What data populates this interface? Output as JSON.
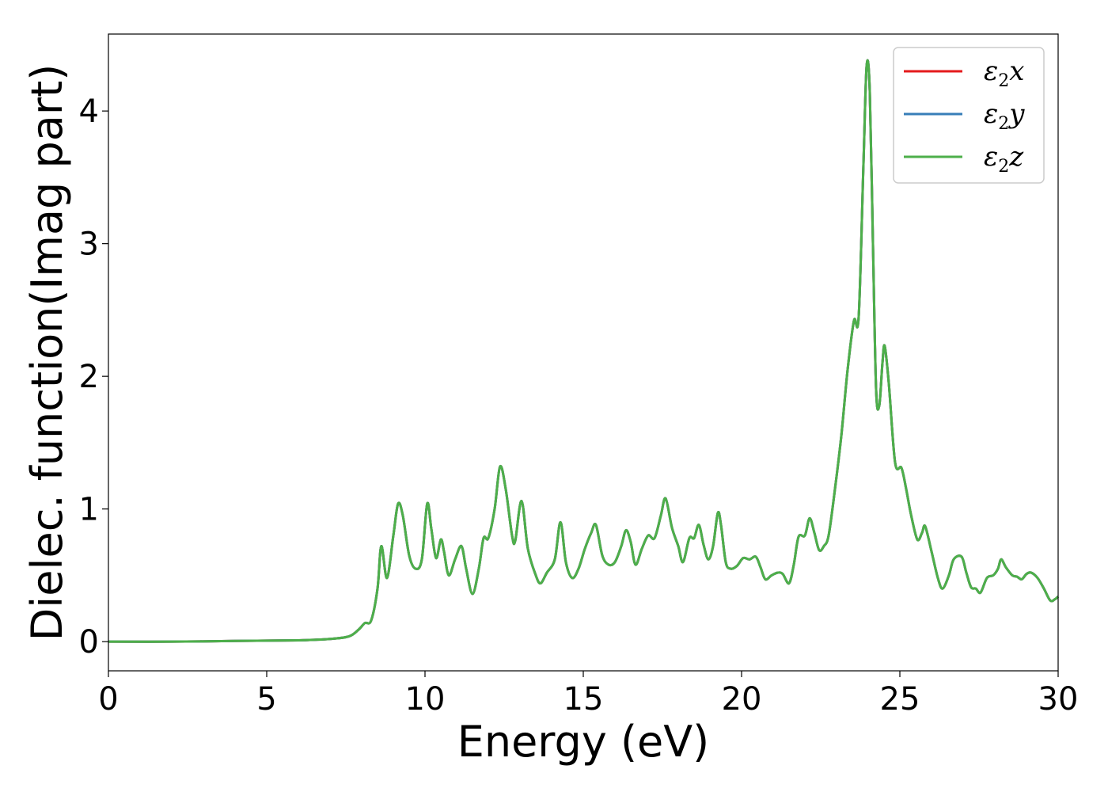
{
  "chart_data": {
    "type": "line",
    "title": "",
    "xlabel": "Energy (eV)",
    "ylabel": "Dielec. function(Imag part)",
    "xlim": [
      0,
      30
    ],
    "ylim": [
      -0.22,
      4.58
    ],
    "xticks": [
      0,
      5,
      10,
      15,
      20,
      25,
      30
    ],
    "yticks": [
      0,
      1,
      2,
      3,
      4
    ],
    "grid": false,
    "legend_position": "top-right",
    "legend": [
      {
        "symbol": "ε",
        "sub": "2",
        "axis": "x",
        "color": "#e41a1c"
      },
      {
        "symbol": "ε",
        "sub": "2",
        "axis": "y",
        "color": "#377eb8"
      },
      {
        "symbol": "ε",
        "sub": "2",
        "axis": "z",
        "color": "#4daf4a"
      }
    ],
    "series_points": [
      [
        0,
        0.0
      ],
      [
        2,
        0.0
      ],
      [
        4,
        0.005
      ],
      [
        6,
        0.01
      ],
      [
        7,
        0.02
      ],
      [
        7.6,
        0.04
      ],
      [
        7.9,
        0.09
      ],
      [
        8.1,
        0.14
      ],
      [
        8.3,
        0.16
      ],
      [
        8.5,
        0.4
      ],
      [
        8.62,
        0.72
      ],
      [
        8.8,
        0.48
      ],
      [
        9.0,
        0.8
      ],
      [
        9.15,
        1.04
      ],
      [
        9.3,
        0.95
      ],
      [
        9.5,
        0.65
      ],
      [
        9.7,
        0.55
      ],
      [
        9.9,
        0.62
      ],
      [
        10.07,
        1.04
      ],
      [
        10.2,
        0.85
      ],
      [
        10.35,
        0.63
      ],
      [
        10.5,
        0.77
      ],
      [
        10.6,
        0.68
      ],
      [
        10.75,
        0.5
      ],
      [
        10.95,
        0.62
      ],
      [
        11.15,
        0.72
      ],
      [
        11.3,
        0.55
      ],
      [
        11.5,
        0.36
      ],
      [
        11.7,
        0.55
      ],
      [
        11.85,
        0.78
      ],
      [
        12.0,
        0.78
      ],
      [
        12.2,
        1.0
      ],
      [
        12.37,
        1.32
      ],
      [
        12.55,
        1.15
      ],
      [
        12.75,
        0.8
      ],
      [
        12.85,
        0.76
      ],
      [
        13.05,
        1.06
      ],
      [
        13.25,
        0.7
      ],
      [
        13.5,
        0.5
      ],
      [
        13.65,
        0.44
      ],
      [
        13.85,
        0.52
      ],
      [
        14.1,
        0.62
      ],
      [
        14.28,
        0.9
      ],
      [
        14.45,
        0.6
      ],
      [
        14.65,
        0.48
      ],
      [
        14.85,
        0.55
      ],
      [
        15.05,
        0.7
      ],
      [
        15.25,
        0.82
      ],
      [
        15.4,
        0.88
      ],
      [
        15.6,
        0.65
      ],
      [
        15.8,
        0.58
      ],
      [
        16.0,
        0.6
      ],
      [
        16.2,
        0.72
      ],
      [
        16.35,
        0.84
      ],
      [
        16.5,
        0.75
      ],
      [
        16.65,
        0.58
      ],
      [
        16.85,
        0.7
      ],
      [
        17.05,
        0.8
      ],
      [
        17.25,
        0.78
      ],
      [
        17.45,
        0.95
      ],
      [
        17.6,
        1.08
      ],
      [
        17.8,
        0.86
      ],
      [
        18.0,
        0.72
      ],
      [
        18.15,
        0.6
      ],
      [
        18.35,
        0.78
      ],
      [
        18.5,
        0.78
      ],
      [
        18.65,
        0.88
      ],
      [
        18.8,
        0.73
      ],
      [
        18.95,
        0.62
      ],
      [
        19.1,
        0.72
      ],
      [
        19.25,
        0.97
      ],
      [
        19.35,
        0.88
      ],
      [
        19.5,
        0.6
      ],
      [
        19.65,
        0.55
      ],
      [
        19.85,
        0.57
      ],
      [
        20.05,
        0.63
      ],
      [
        20.25,
        0.62
      ],
      [
        20.45,
        0.64
      ],
      [
        20.6,
        0.56
      ],
      [
        20.75,
        0.47
      ],
      [
        20.95,
        0.5
      ],
      [
        21.15,
        0.52
      ],
      [
        21.3,
        0.51
      ],
      [
        21.5,
        0.44
      ],
      [
        21.65,
        0.58
      ],
      [
        21.8,
        0.79
      ],
      [
        22.0,
        0.8
      ],
      [
        22.15,
        0.93
      ],
      [
        22.3,
        0.82
      ],
      [
        22.45,
        0.69
      ],
      [
        22.6,
        0.72
      ],
      [
        22.75,
        0.8
      ],
      [
        22.95,
        1.15
      ],
      [
        23.15,
        1.55
      ],
      [
        23.35,
        2.05
      ],
      [
        23.55,
        2.42
      ],
      [
        23.7,
        2.45
      ],
      [
        23.85,
        3.6
      ],
      [
        23.95,
        4.34
      ],
      [
        24.05,
        4.15
      ],
      [
        24.15,
        3.0
      ],
      [
        24.25,
        1.9
      ],
      [
        24.35,
        1.78
      ],
      [
        24.45,
        2.1
      ],
      [
        24.52,
        2.23
      ],
      [
        24.65,
        1.95
      ],
      [
        24.85,
        1.35
      ],
      [
        25.05,
        1.31
      ],
      [
        25.2,
        1.15
      ],
      [
        25.35,
        0.96
      ],
      [
        25.55,
        0.77
      ],
      [
        25.7,
        0.82
      ],
      [
        25.8,
        0.87
      ],
      [
        26.0,
        0.68
      ],
      [
        26.2,
        0.48
      ],
      [
        26.35,
        0.4
      ],
      [
        26.55,
        0.5
      ],
      [
        26.7,
        0.62
      ],
      [
        26.95,
        0.64
      ],
      [
        27.1,
        0.52
      ],
      [
        27.25,
        0.41
      ],
      [
        27.4,
        0.4
      ],
      [
        27.55,
        0.37
      ],
      [
        27.75,
        0.48
      ],
      [
        27.95,
        0.5
      ],
      [
        28.1,
        0.55
      ],
      [
        28.2,
        0.62
      ],
      [
        28.35,
        0.56
      ],
      [
        28.55,
        0.5
      ],
      [
        28.7,
        0.49
      ],
      [
        28.85,
        0.47
      ],
      [
        29.0,
        0.51
      ],
      [
        29.15,
        0.52
      ],
      [
        29.35,
        0.48
      ],
      [
        29.55,
        0.4
      ],
      [
        29.75,
        0.31
      ],
      [
        29.9,
        0.32
      ],
      [
        30.0,
        0.34
      ]
    ]
  }
}
